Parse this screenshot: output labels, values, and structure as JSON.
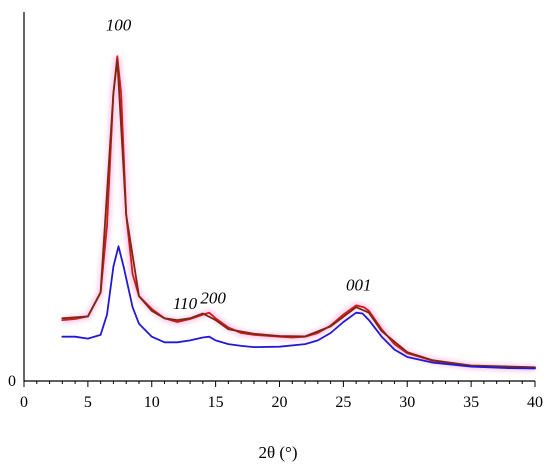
{
  "chart_data": {
    "type": "line",
    "xlabel": "2θ (°)",
    "xlim": [
      0,
      40
    ],
    "ylim": [
      0,
      100
    ],
    "x_ticks": [
      "0",
      "5",
      "10",
      "15",
      "20",
      "25",
      "30",
      "35",
      "40"
    ],
    "y_tick_labels": [
      "0"
    ],
    "grid": false,
    "annotations": [
      {
        "text": "100",
        "x": 7.4,
        "y": 95
      },
      {
        "text": "110",
        "x": 12.6,
        "y": 19.5
      },
      {
        "text": "200",
        "x": 14.8,
        "y": 21
      },
      {
        "text": "001",
        "x": 26.2,
        "y": 24.5
      }
    ],
    "series": [
      {
        "color": "#d21a1a",
        "points": [
          [
            3,
            16.5
          ],
          [
            4,
            16.8
          ],
          [
            5,
            17.5
          ],
          [
            6,
            24
          ],
          [
            6.5,
            42
          ],
          [
            7,
            78
          ],
          [
            7.3,
            88
          ],
          [
            7.6,
            78
          ],
          [
            8,
            45
          ],
          [
            8.5,
            29
          ],
          [
            9,
            23
          ],
          [
            10,
            19.5
          ],
          [
            11,
            17
          ],
          [
            12,
            16
          ],
          [
            13,
            16.8
          ],
          [
            14,
            18
          ],
          [
            14.5,
            18.5
          ],
          [
            15,
            17
          ],
          [
            16,
            14.5
          ],
          [
            17,
            13
          ],
          [
            18,
            12.5
          ],
          [
            20,
            12
          ],
          [
            21,
            11.8
          ],
          [
            22,
            12
          ],
          [
            23,
            13
          ],
          [
            24,
            15
          ],
          [
            25,
            18
          ],
          [
            26,
            20.5
          ],
          [
            26.6,
            20
          ],
          [
            27,
            19
          ],
          [
            28,
            14
          ],
          [
            29,
            10
          ],
          [
            30,
            7.5
          ],
          [
            32,
            5.5
          ],
          [
            35,
            4
          ],
          [
            38,
            3.6
          ],
          [
            40,
            3.5
          ]
        ]
      },
      {
        "color": "#7a2a12",
        "points": [
          [
            3,
            17
          ],
          [
            5,
            17.5
          ],
          [
            6,
            24
          ],
          [
            7,
            78
          ],
          [
            7.3,
            87
          ],
          [
            8,
            45
          ],
          [
            9,
            23
          ],
          [
            10,
            19
          ],
          [
            11,
            17
          ],
          [
            12,
            16.5
          ],
          [
            13,
            17
          ],
          [
            14,
            18.3
          ],
          [
            15,
            16.5
          ],
          [
            16,
            14
          ],
          [
            18,
            12.8
          ],
          [
            20,
            12.2
          ],
          [
            22,
            12.1
          ],
          [
            24,
            14.8
          ],
          [
            26,
            20
          ],
          [
            27,
            18.5
          ],
          [
            28,
            13.5
          ],
          [
            30,
            7.8
          ],
          [
            32,
            5.6
          ],
          [
            35,
            4.2
          ],
          [
            40,
            3.7
          ]
        ]
      },
      {
        "color": "#2418d6",
        "points": [
          [
            3,
            12
          ],
          [
            4,
            12
          ],
          [
            5,
            11.5
          ],
          [
            6,
            12.5
          ],
          [
            6.5,
            18
          ],
          [
            7,
            31
          ],
          [
            7.4,
            36.5
          ],
          [
            7.8,
            31
          ],
          [
            8.5,
            20
          ],
          [
            9,
            15.5
          ],
          [
            10,
            12
          ],
          [
            11,
            10.5
          ],
          [
            12,
            10.5
          ],
          [
            13,
            11
          ],
          [
            14,
            11.8
          ],
          [
            14.5,
            12
          ],
          [
            15,
            11
          ],
          [
            16,
            10
          ],
          [
            17,
            9.5
          ],
          [
            18,
            9.2
          ],
          [
            20,
            9.3
          ],
          [
            22,
            10
          ],
          [
            23,
            11
          ],
          [
            24,
            13
          ],
          [
            25,
            16
          ],
          [
            26,
            18.5
          ],
          [
            26.5,
            18.3
          ],
          [
            27,
            16.5
          ],
          [
            28,
            12
          ],
          [
            29,
            8.5
          ],
          [
            30,
            6.5
          ],
          [
            32,
            5
          ],
          [
            35,
            3.9
          ],
          [
            38,
            3.5
          ],
          [
            40,
            3.4
          ]
        ]
      }
    ]
  }
}
